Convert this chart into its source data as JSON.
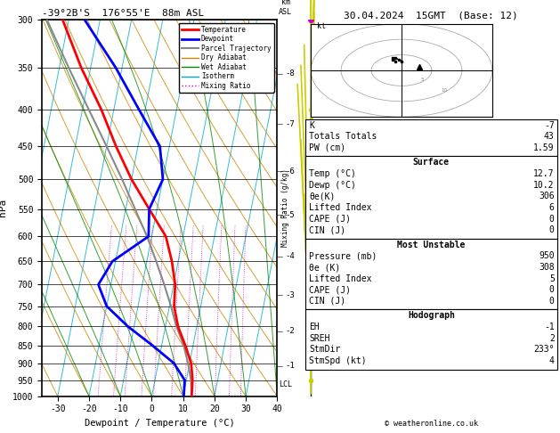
{
  "title_left": "-39°2B'S  176°55'E  88m ASL",
  "title_right": "30.04.2024  15GMT  (Base: 12)",
  "xlabel": "Dewpoint / Temperature (°C)",
  "ylabel_left": "hPa",
  "bg_color": "#ffffff",
  "pressure_levels": [
    300,
    350,
    400,
    450,
    500,
    550,
    600,
    650,
    700,
    750,
    800,
    850,
    900,
    950,
    1000
  ],
  "temp_data": {
    "pressure": [
      1000,
      950,
      900,
      850,
      800,
      750,
      700,
      650,
      600,
      550,
      500,
      450,
      400,
      350,
      300
    ],
    "temperature": [
      12.7,
      12.0,
      10.5,
      7.5,
      4.0,
      1.5,
      0.5,
      -2.0,
      -5.5,
      -12.5,
      -20.0,
      -27.0,
      -34.0,
      -43.0,
      -52.0
    ]
  },
  "dewp_data": {
    "pressure": [
      1000,
      950,
      900,
      850,
      800,
      750,
      700,
      650,
      600,
      550,
      500,
      450,
      400,
      350,
      300
    ],
    "dewpoint": [
      10.2,
      9.5,
      5.0,
      -3.0,
      -12.0,
      -20.0,
      -24.0,
      -21.0,
      -11.0,
      -12.5,
      -10.0,
      -13.0,
      -22.0,
      -32.0,
      -45.0
    ]
  },
  "parcel_data": {
    "pressure": [
      1000,
      950,
      900,
      850,
      800,
      750,
      700,
      650,
      600,
      550,
      500,
      450,
      400,
      350,
      300
    ],
    "temperature": [
      12.7,
      11.5,
      9.5,
      7.0,
      3.5,
      0.5,
      -3.0,
      -7.0,
      -11.5,
      -17.0,
      -23.0,
      -30.0,
      -38.0,
      -47.0,
      -57.0
    ]
  },
  "temp_color": "#ff0000",
  "dewp_color": "#0000ff",
  "parcel_color": "#888888",
  "dry_adiabat_color": "#cc8800",
  "wet_adiabat_color": "#008800",
  "isotherm_color": "#00aacc",
  "mix_ratio_color": "#cc00cc",
  "x_min": -35,
  "x_max": 40,
  "p_min": 300,
  "p_max": 1000,
  "skew_factor": 45.0,
  "km_ticks": [
    1,
    2,
    3,
    4,
    5,
    6,
    7,
    8
  ],
  "km_pressures": [
    908,
    813,
    724,
    640,
    560,
    487,
    419,
    357
  ],
  "mixing_ratios": [
    1,
    1.5,
    2,
    3,
    4,
    6,
    8,
    10,
    15,
    20,
    25
  ],
  "isotherm_values": [
    -40,
    -30,
    -20,
    -10,
    0,
    10,
    20,
    30,
    40
  ],
  "legend_entries": [
    {
      "label": "Temperature",
      "color": "#ff0000",
      "lw": 2,
      "style": "-"
    },
    {
      "label": "Dewpoint",
      "color": "#0000ff",
      "lw": 2,
      "style": "-"
    },
    {
      "label": "Parcel Trajectory",
      "color": "#888888",
      "lw": 1.5,
      "style": "-"
    },
    {
      "label": "Dry Adiabat",
      "color": "#cc8800",
      "lw": 1,
      "style": "-"
    },
    {
      "label": "Wet Adiabat",
      "color": "#008800",
      "lw": 1,
      "style": "-"
    },
    {
      "label": "Isotherm",
      "color": "#00aacc",
      "lw": 1,
      "style": "-"
    },
    {
      "label": "Mixing Ratio",
      "color": "#cc00cc",
      "lw": 1,
      "style": ":"
    }
  ],
  "info_rows_top": [
    [
      "K",
      "-7"
    ],
    [
      "Totals Totals",
      "43"
    ],
    [
      "PW (cm)",
      "1.59"
    ]
  ],
  "info_surface_rows": [
    [
      "Temp (°C)",
      "12.7"
    ],
    [
      "Dewp (°C)",
      "10.2"
    ],
    [
      "θe(K)",
      "306"
    ],
    [
      "Lifted Index",
      "6"
    ],
    [
      "CAPE (J)",
      "0"
    ],
    [
      "CIN (J)",
      "0"
    ]
  ],
  "info_mu_rows": [
    [
      "Pressure (mb)",
      "950"
    ],
    [
      "θe (K)",
      "308"
    ],
    [
      "Lifted Index",
      "5"
    ],
    [
      "CAPE (J)",
      "0"
    ],
    [
      "CIN (J)",
      "0"
    ]
  ],
  "info_hodo_rows": [
    [
      "EH",
      "-1"
    ],
    [
      "SREH",
      "2"
    ],
    [
      "StmDir",
      "233°"
    ],
    [
      "StmSpd (kt)",
      "4"
    ]
  ],
  "lcl_pressure": 963,
  "footer": "© weatheronline.co.uk",
  "wind_barb_pressures": [
    1000,
    950,
    900,
    850,
    800,
    750,
    700,
    650,
    600,
    550,
    500,
    450,
    400,
    350,
    300
  ],
  "wind_barb_u": [
    0.0,
    -1.0,
    -1.5,
    -2.0,
    -1.5,
    -1.0,
    0.0,
    0.5,
    0.5,
    0.5,
    0.5,
    0.5,
    0.5,
    0.5,
    0.0
  ],
  "wind_barb_v": [
    2.0,
    2.5,
    3.0,
    3.5,
    3.5,
    3.5,
    4.0,
    3.5,
    3.0,
    2.5,
    2.0,
    1.5,
    1.5,
    1.0,
    0.5
  ],
  "wind_color": "#cccc00",
  "wind_dot_p": [
    950,
    700,
    500,
    400
  ],
  "hodo_trace_u": [
    0.0,
    -0.5,
    -1.0,
    -1.5,
    -1.5,
    -1.0
  ],
  "hodo_trace_v": [
    3.0,
    3.5,
    4.0,
    4.0,
    3.5,
    3.0
  ],
  "hodo_scale": 10,
  "purple_dot_p": 300
}
